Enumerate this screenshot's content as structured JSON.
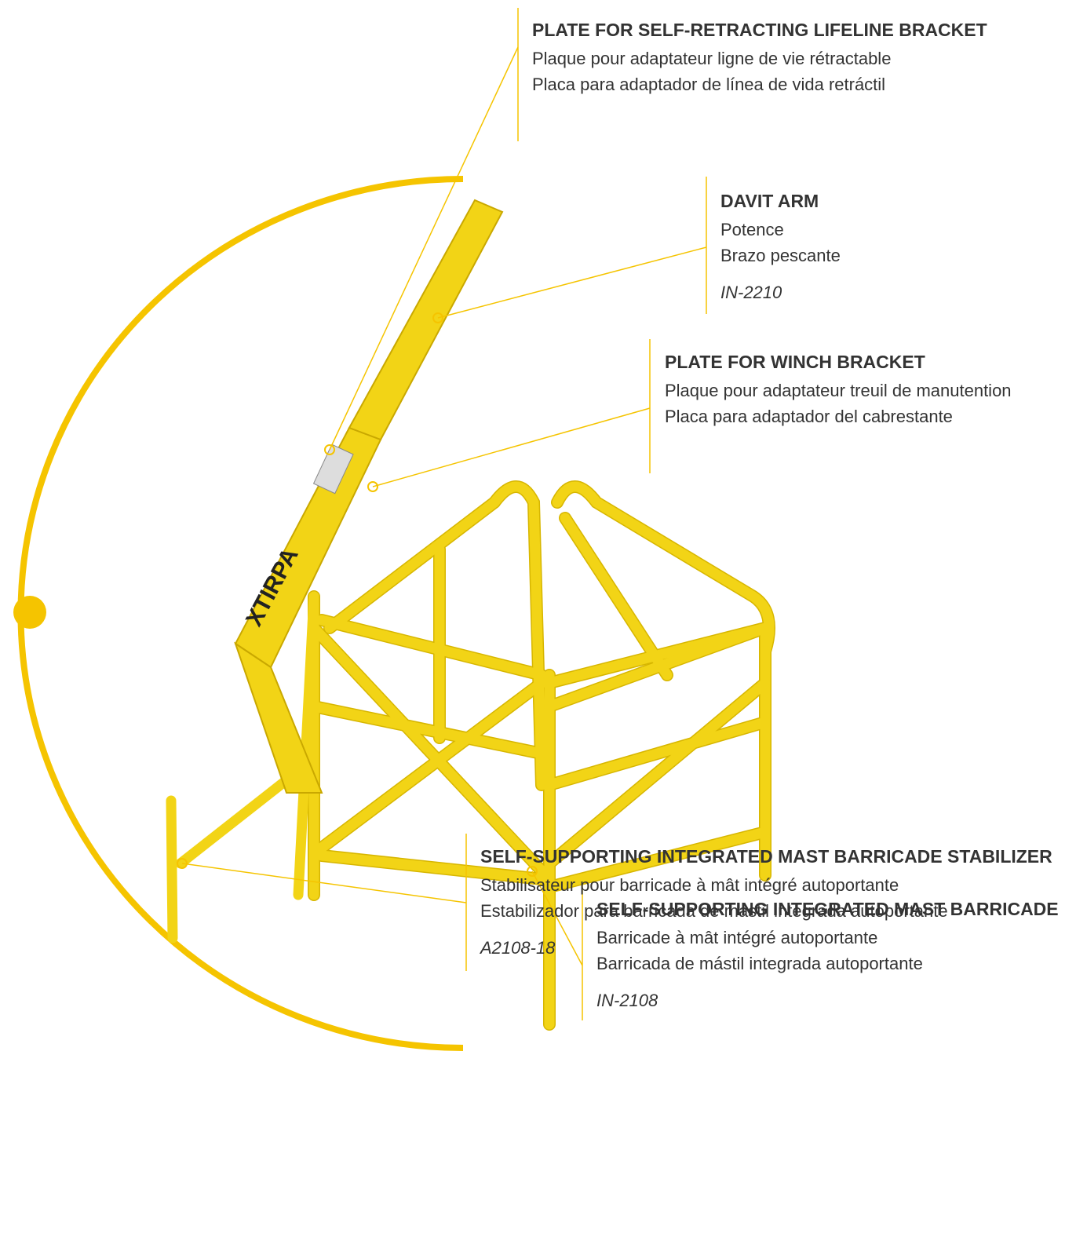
{
  "callouts": [
    {
      "title": "PLATE FOR SELF-RETRACTING LIFELINE BRACKET",
      "lines": [
        "Plaque pour adaptateur ligne de vie rétractable",
        "Placa para adaptador de línea de vida retráctil"
      ]
    },
    {
      "title": "DAVIT ARM",
      "lines": [
        "Potence",
        "Brazo pescante"
      ],
      "code": "IN-2210"
    },
    {
      "title": "PLATE FOR WINCH BRACKET",
      "lines": [
        "Plaque pour adaptateur treuil de manutention",
        "Placa para adaptador del cabrestante"
      ]
    },
    {
      "title": "SELF-SUPPORTING INTEGRATED MAST BARRICADE",
      "lines": [
        "Barricade à mât intégré autoportante",
        "Barricada de mástil integrada autoportante"
      ],
      "code": "IN-2108"
    },
    {
      "title": "SELF-SUPPORTING INTEGRATED MAST BARRICADE STABILIZER",
      "lines": [
        "Stabilisateur pour barricade à mât intégré autoportante",
        "Estabilizador para barricada de mástil integrada autoportante"
      ],
      "code": "A2108-18"
    }
  ]
}
